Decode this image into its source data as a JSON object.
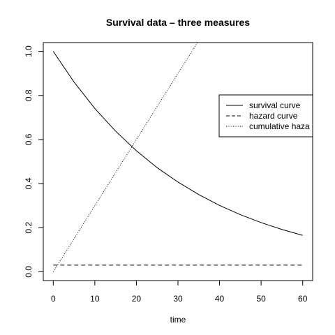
{
  "chart_data": {
    "type": "line",
    "title": "Survival data – three measures",
    "xlabel": "time",
    "ylabel": "",
    "xlim": [
      -2.4,
      62.4
    ],
    "ylim": [
      -0.04,
      1.04
    ],
    "xticks": [
      0,
      10,
      20,
      30,
      40,
      50,
      60
    ],
    "yticks": [
      0.0,
      0.2,
      0.4,
      0.6,
      0.8,
      1.0
    ],
    "xtick_labels": [
      "0",
      "10",
      "20",
      "30",
      "40",
      "50",
      "60"
    ],
    "ytick_labels": [
      "0.0",
      "0.2",
      "0.4",
      "0.6",
      "0.8",
      "1.0"
    ],
    "grid": false,
    "legend_position": "right",
    "series": [
      {
        "name": "survival curve",
        "line_style": "solid",
        "x": [
          0,
          5,
          10,
          15,
          20,
          25,
          30,
          35,
          40,
          45,
          50,
          55,
          60
        ],
        "y": [
          1.0,
          0.861,
          0.741,
          0.638,
          0.549,
          0.472,
          0.407,
          0.35,
          0.301,
          0.259,
          0.223,
          0.192,
          0.165
        ]
      },
      {
        "name": "hazard curve",
        "line_style": "dashed",
        "x": [
          0,
          60
        ],
        "y": [
          0.03,
          0.03
        ]
      },
      {
        "name": "cumulative haza",
        "line_style": "dotted",
        "x": [
          0,
          5,
          10,
          15,
          20,
          25,
          30,
          34.7
        ],
        "y": [
          0.0,
          0.15,
          0.3,
          0.45,
          0.6,
          0.75,
          0.9,
          1.04
        ]
      }
    ]
  }
}
